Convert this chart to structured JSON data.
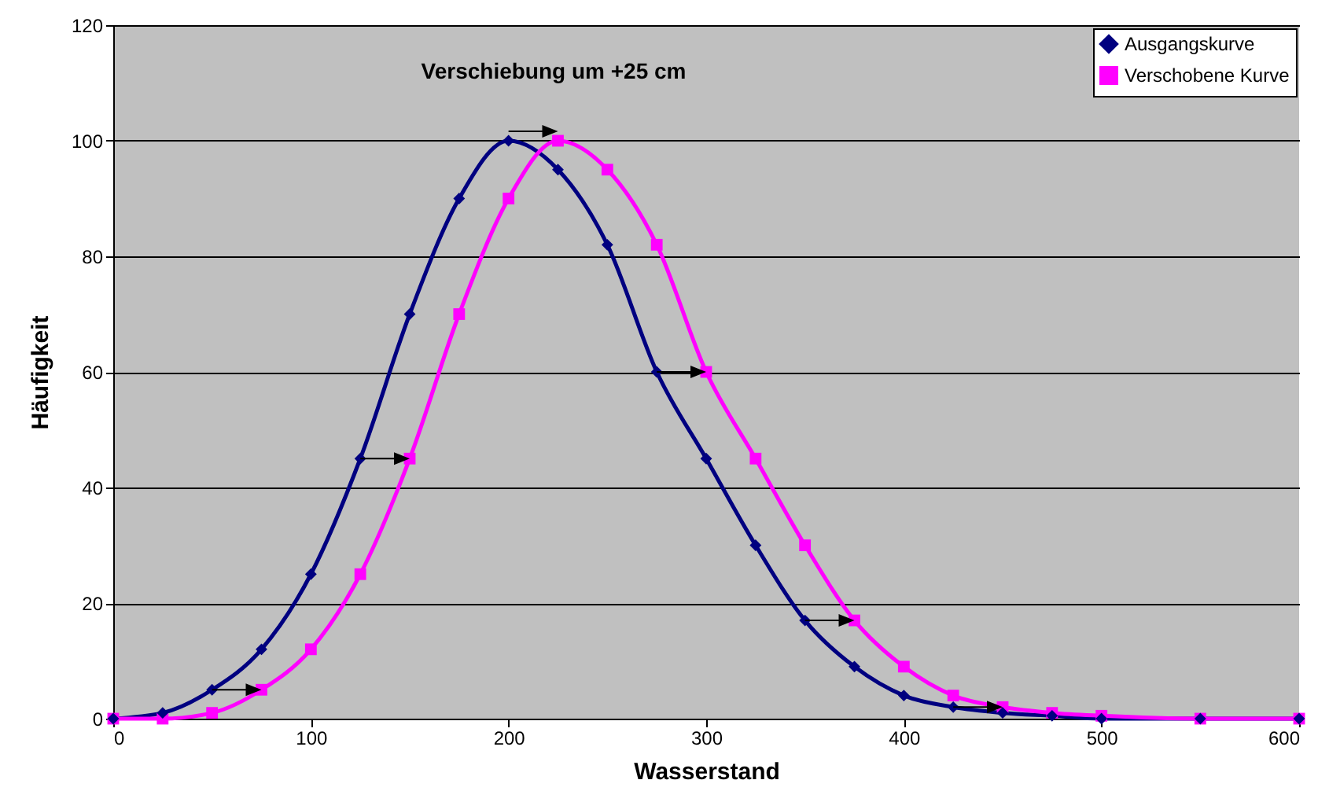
{
  "chart_data": {
    "type": "line",
    "xlabel": "Wasserstand",
    "ylabel": "Häufigkeit",
    "annotations": [
      "Verschiebung um +25 cm"
    ],
    "x": [
      0,
      25,
      50,
      75,
      100,
      125,
      150,
      175,
      200,
      225,
      250,
      275,
      300,
      325,
      350,
      375,
      400,
      425,
      450,
      475,
      500,
      550,
      600
    ],
    "series": [
      {
        "name": "Ausgangskurve",
        "color": "#000080",
        "marker": "diamond",
        "values": [
          0,
          1,
          5,
          12,
          25,
          45,
          70,
          90,
          100,
          95,
          82,
          60,
          45,
          30,
          17,
          9,
          4,
          2,
          1,
          0.5,
          0,
          0,
          0
        ]
      },
      {
        "name": "Verschobene Kurve",
        "color": "#ff00ff",
        "marker": "square",
        "values": [
          0,
          0,
          1,
          5,
          12,
          25,
          45,
          70,
          90,
          100,
          95,
          82,
          60,
          45,
          30,
          17,
          9,
          4,
          2,
          1,
          0.5,
          0,
          0
        ]
      }
    ],
    "xlim": [
      0,
      600
    ],
    "xticks": [
      0,
      100,
      200,
      300,
      400,
      500,
      600
    ],
    "ylim": [
      0,
      120
    ],
    "yticks": [
      0,
      20,
      40,
      60,
      80,
      100,
      120
    ],
    "grid": "y",
    "legend": "top right",
    "line_style": "solid"
  }
}
